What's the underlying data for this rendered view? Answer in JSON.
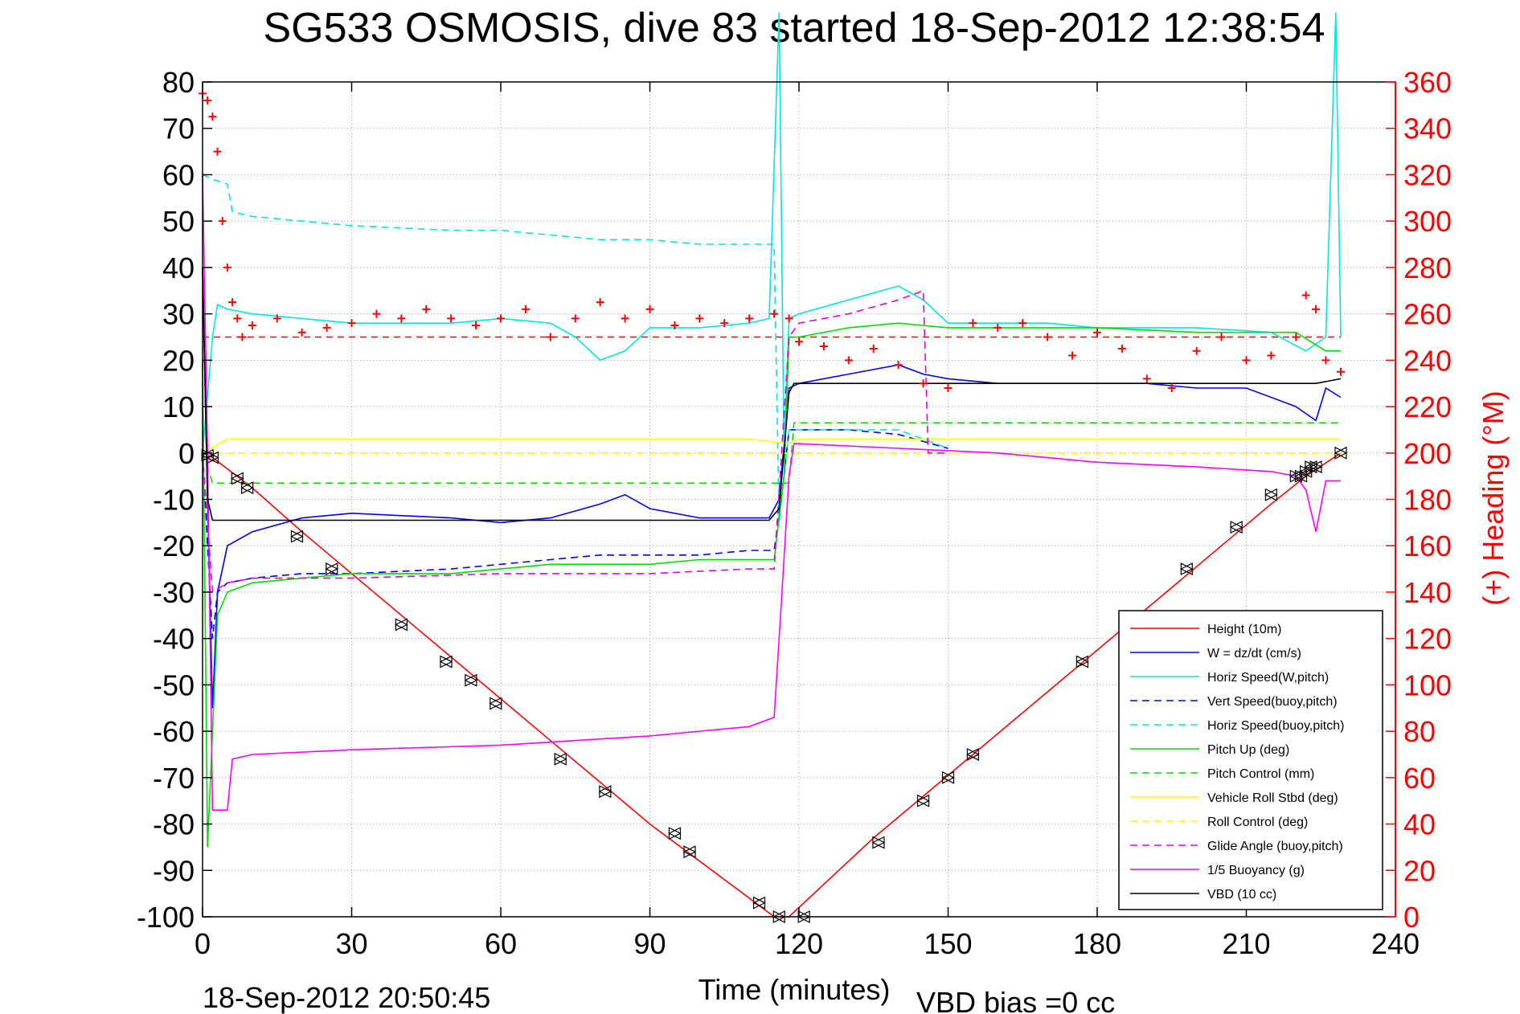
{
  "title": "SG533 OSMOSIS, dive 83 started 18-Sep-2012 12:38:54",
  "footer": {
    "timestamp": "18-Sep-2012 20:50:45",
    "vbd_bias": "VBD bias =0 cc"
  },
  "chart_data": {
    "type": "line",
    "title": "SG533 OSMOSIS, dive 83 started 18-Sep-2012 12:38:54",
    "xlabel": "Time (minutes)",
    "ylabel": "",
    "y2label": "(+) Heading (°M)",
    "xlim": [
      0,
      240
    ],
    "ylim": [
      -100,
      80
    ],
    "y2lim": [
      0,
      360
    ],
    "x_ticks": [
      0,
      30,
      60,
      90,
      120,
      150,
      180,
      210,
      240
    ],
    "x_tick_labels": [
      "0",
      "30",
      "60",
      "90",
      "120",
      "150",
      "180",
      "210",
      "240"
    ],
    "y_ticks": [
      80,
      70,
      60,
      50,
      40,
      30,
      20,
      10,
      0,
      -10,
      -20,
      -30,
      -40,
      -50,
      -60,
      -70,
      -80,
      -90,
      -100
    ],
    "y_tick_labels": [
      "80",
      "70",
      "60",
      "50",
      "40",
      "30",
      "20",
      "10",
      "0",
      "-10",
      "-20",
      "-30",
      "-40",
      "-50",
      "-60",
      "-70",
      "-80",
      "-90",
      "-100"
    ],
    "y2_ticks": [
      360,
      340,
      320,
      300,
      280,
      260,
      240,
      220,
      200,
      180,
      160,
      140,
      120,
      100,
      80,
      60,
      40,
      20,
      0
    ],
    "y2_tick_labels": [
      "360",
      "340",
      "320",
      "300",
      "280",
      "260",
      "240",
      "220",
      "200",
      "180",
      "160",
      "140",
      "120",
      "100",
      "80",
      "60",
      "40",
      "20",
      "0"
    ],
    "grid": true,
    "legend_position": "bottom-right",
    "series": [
      {
        "name": "Height (10m)",
        "color": "#ff0000",
        "dash": "solid",
        "x": [
          0,
          2,
          10,
          20,
          30,
          40,
          50,
          60,
          70,
          80,
          90,
          100,
          110,
          115,
          118,
          125,
          135,
          145,
          155,
          165,
          175,
          185,
          195,
          205,
          215,
          222,
          229
        ],
        "y": [
          0,
          -1,
          -7.5,
          -17,
          -26,
          -35,
          -44,
          -53,
          -62,
          -71,
          -80,
          -88,
          -96,
          -100,
          -100,
          -93,
          -83,
          -74,
          -65,
          -56,
          -47,
          -38,
          -29,
          -20,
          -11,
          -5,
          0
        ]
      },
      {
        "name": "W = dz/dt (cm/s)",
        "color": "#0000ff",
        "dash": "solid",
        "x": [
          0,
          1,
          2,
          3,
          5,
          10,
          20,
          30,
          50,
          60,
          70,
          80,
          85,
          90,
          100,
          110,
          114,
          116,
          118,
          120,
          130,
          140,
          145,
          150,
          160,
          170,
          180,
          190,
          200,
          210,
          215,
          220,
          224,
          226,
          229
        ],
        "y": [
          40,
          -10,
          -55,
          -30,
          -20,
          -17,
          -14,
          -13,
          -14,
          -15,
          -14,
          -11,
          -9,
          -12,
          -14,
          -14,
          -14,
          -10,
          14,
          15,
          17,
          19,
          17,
          16,
          15,
          15,
          15,
          15,
          14,
          14,
          12,
          10,
          7,
          14,
          12
        ]
      },
      {
        "name": "Horiz Speed(W,pitch)",
        "color": "#00e5e5",
        "dash": "solid",
        "x": [
          0,
          2,
          3,
          5,
          10,
          20,
          30,
          50,
          60,
          70,
          75,
          80,
          85,
          90,
          95,
          100,
          110,
          114,
          116,
          117,
          118,
          120,
          130,
          140,
          145,
          150,
          160,
          170,
          180,
          200,
          215,
          222,
          226,
          228,
          229
        ],
        "y": [
          0,
          25,
          32,
          31,
          30,
          29,
          28,
          28,
          29,
          28,
          25,
          20,
          22,
          27,
          27,
          27,
          28,
          29,
          95,
          0,
          29,
          30,
          33,
          36,
          33,
          28,
          28,
          28,
          27,
          27,
          26,
          22,
          25,
          95,
          25
        ]
      },
      {
        "name": "Vert Speed(buoy,pitch)",
        "color": "#0000ff",
        "dash": "dashed",
        "x": [
          0,
          2,
          3,
          5,
          10,
          20,
          30,
          50,
          60,
          70,
          80,
          90,
          100,
          110,
          115,
          117,
          118,
          120,
          130,
          140,
          150
        ],
        "y": [
          0,
          -40,
          -30,
          -28,
          -27,
          -26,
          -26,
          -25,
          -24,
          -23,
          -22,
          -22,
          -22,
          -21,
          -21,
          -5,
          5,
          5,
          5,
          4,
          1
        ]
      },
      {
        "name": "Horiz Speed(buoy,pitch)",
        "color": "#00e5e5",
        "dash": "dashed",
        "x": [
          0,
          2,
          5,
          6,
          10,
          20,
          30,
          50,
          60,
          70,
          80,
          90,
          100,
          110,
          115,
          116,
          118,
          120,
          130,
          140,
          150
        ],
        "y": [
          60,
          59,
          58,
          52,
          51,
          50,
          49,
          48,
          48,
          47,
          46,
          46,
          45,
          45,
          45,
          -15,
          5,
          5,
          5,
          5,
          1
        ]
      },
      {
        "name": "Pitch Up (deg)",
        "color": "#00dd00",
        "dash": "solid",
        "x": [
          0,
          1,
          2,
          3,
          5,
          10,
          20,
          30,
          50,
          60,
          70,
          80,
          90,
          100,
          110,
          115,
          117,
          118,
          120,
          130,
          140,
          150,
          160,
          180,
          200,
          220,
          226,
          229
        ],
        "y": [
          20,
          -85,
          -60,
          -35,
          -30,
          -28,
          -27,
          -26,
          -26,
          -25,
          -24,
          -24,
          -24,
          -23,
          -23,
          -23,
          -5,
          25,
          25,
          27,
          28,
          27,
          27,
          27,
          26,
          26,
          22,
          22
        ]
      },
      {
        "name": "Pitch Control (mm)",
        "color": "#00dd00",
        "dash": "dashed",
        "x": [
          0,
          2,
          5,
          118,
          119,
          229
        ],
        "y": [
          0,
          -6.5,
          -6.5,
          -6.5,
          6.5,
          6.5
        ]
      },
      {
        "name": "Vehicle Roll Stbd (deg)",
        "color": "#ffff00",
        "dash": "solid",
        "x": [
          0,
          5,
          10,
          30,
          60,
          90,
          110,
          118,
          120,
          150,
          180,
          210,
          229
        ],
        "y": [
          0,
          3,
          3,
          3,
          3,
          3,
          3,
          2,
          3,
          3,
          3,
          3,
          3
        ]
      },
      {
        "name": "Roll Control (deg)",
        "color": "#ffff00",
        "dash": "dashed",
        "x": [
          0,
          229
        ],
        "y": [
          0,
          0
        ]
      },
      {
        "name": "Glide Angle (buoy,pitch)",
        "color": "#e600e6",
        "dash": "dashed",
        "x": [
          0,
          2,
          5,
          10,
          30,
          60,
          90,
          110,
          115,
          118,
          120,
          130,
          140,
          145,
          146,
          150
        ],
        "y": [
          0,
          -30,
          -28,
          -27,
          -27,
          -26,
          -26,
          -25,
          -25,
          25,
          28,
          30,
          33,
          35,
          0,
          0
        ]
      },
      {
        "name": "1/5 Buoyancy (g)",
        "color": "#ff00ff",
        "dash": "solid",
        "x": [
          0,
          1,
          2,
          5,
          6,
          10,
          30,
          60,
          90,
          110,
          115,
          116,
          118,
          119,
          120,
          140,
          160,
          180,
          200,
          215,
          220,
          222,
          224,
          226,
          229
        ],
        "y": [
          60,
          0,
          -77,
          -77,
          -66,
          -65,
          -64,
          -63,
          -61,
          -59,
          -57,
          -40,
          -5,
          2,
          2,
          1,
          0,
          -2,
          -3,
          -4,
          -5,
          -8,
          -17,
          -6,
          -6
        ]
      },
      {
        "name": "VBD (10 cc)",
        "color": "#000000",
        "dash": "solid",
        "x": [
          0,
          1,
          2,
          3,
          114,
          116,
          118,
          119,
          120,
          222,
          224,
          229
        ],
        "y": [
          40,
          -10,
          -14.5,
          -14.5,
          -14.5,
          -12,
          13,
          15,
          15,
          15,
          15,
          16
        ]
      },
      {
        "name": "Heading",
        "color": "#ff0000",
        "axis": "right",
        "marker": "+",
        "x": [
          0,
          1,
          2,
          3,
          4,
          5,
          6,
          7,
          8,
          10,
          15,
          20,
          25,
          30,
          35,
          40,
          45,
          50,
          55,
          60,
          65,
          70,
          75,
          80,
          85,
          90,
          95,
          100,
          105,
          110,
          115,
          118,
          120,
          125,
          130,
          135,
          140,
          145,
          150,
          155,
          160,
          165,
          170,
          175,
          180,
          185,
          190,
          195,
          200,
          205,
          210,
          215,
          220,
          222,
          224,
          226,
          229
        ],
        "y": [
          355,
          352,
          345,
          330,
          300,
          280,
          265,
          258,
          250,
          255,
          258,
          252,
          254,
          256,
          260,
          258,
          262,
          258,
          255,
          258,
          262,
          250,
          258,
          265,
          258,
          262,
          255,
          258,
          256,
          258,
          260,
          258,
          248,
          246,
          240,
          245,
          238,
          230,
          228,
          256,
          254,
          256,
          250,
          242,
          252,
          245,
          232,
          228,
          244,
          250,
          240,
          242,
          250,
          268,
          262,
          240,
          235
        ]
      }
    ],
    "reference_lines": [
      {
        "axis": "right",
        "y": 250,
        "color": "#ff0000",
        "dash": "dashed"
      }
    ],
    "markers": {
      "name": "Height samples",
      "symbol": "triangle",
      "color": "#000000",
      "x": [
        1,
        2,
        7,
        9,
        19,
        26,
        40,
        49,
        54,
        59,
        72,
        81,
        95,
        98,
        112,
        116,
        121,
        136,
        145,
        150,
        155,
        177,
        198,
        208,
        215,
        220,
        221,
        222,
        223,
        224,
        229
      ],
      "y": [
        -0.5,
        -1,
        -5.5,
        -7.5,
        -18,
        -25,
        -37,
        -45,
        -49,
        -54,
        -66,
        -73,
        -82,
        -86,
        -97,
        -100,
        -100,
        -84,
        -75,
        -70,
        -65,
        -45,
        -25,
        -16,
        -9,
        -5,
        -5,
        -4,
        -3,
        -3,
        0
      ]
    }
  }
}
